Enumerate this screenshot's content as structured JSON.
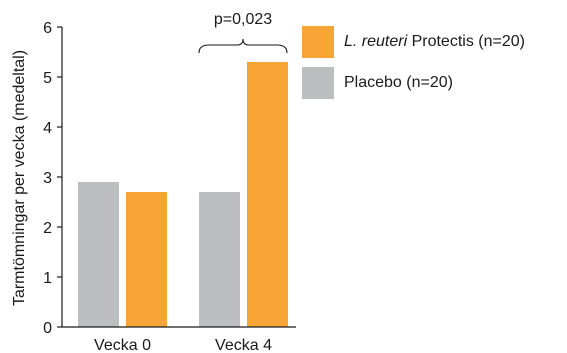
{
  "colors": {
    "placebo": "#bcbec0",
    "reuteri": "#f7a534",
    "axis": "#1a1a1a"
  },
  "chart_data": {
    "type": "bar",
    "categories": [
      "Vecka 0",
      "Vecka 4"
    ],
    "series": [
      {
        "name": "Placebo (n=20)",
        "values": [
          2.9,
          2.7
        ]
      },
      {
        "name": "L. reuteri Protectis (n=20)",
        "values": [
          2.7,
          5.3
        ]
      }
    ],
    "xlabel": "",
    "ylabel": "Tarmtömningar per vecka (medeltal)",
    "ylim": [
      0,
      6
    ],
    "yticks": [
      0,
      1,
      2,
      3,
      4,
      5,
      6
    ],
    "grid": false,
    "legend_position": "top-right",
    "annotations": [
      {
        "text": "p=0,023",
        "category": "Vecka 4"
      }
    ]
  },
  "legend": {
    "items": [
      {
        "italic": "L. reuteri",
        "rest": " Protectis (n=20)"
      },
      {
        "italic": "",
        "rest": "Placebo (n=20)"
      }
    ]
  }
}
